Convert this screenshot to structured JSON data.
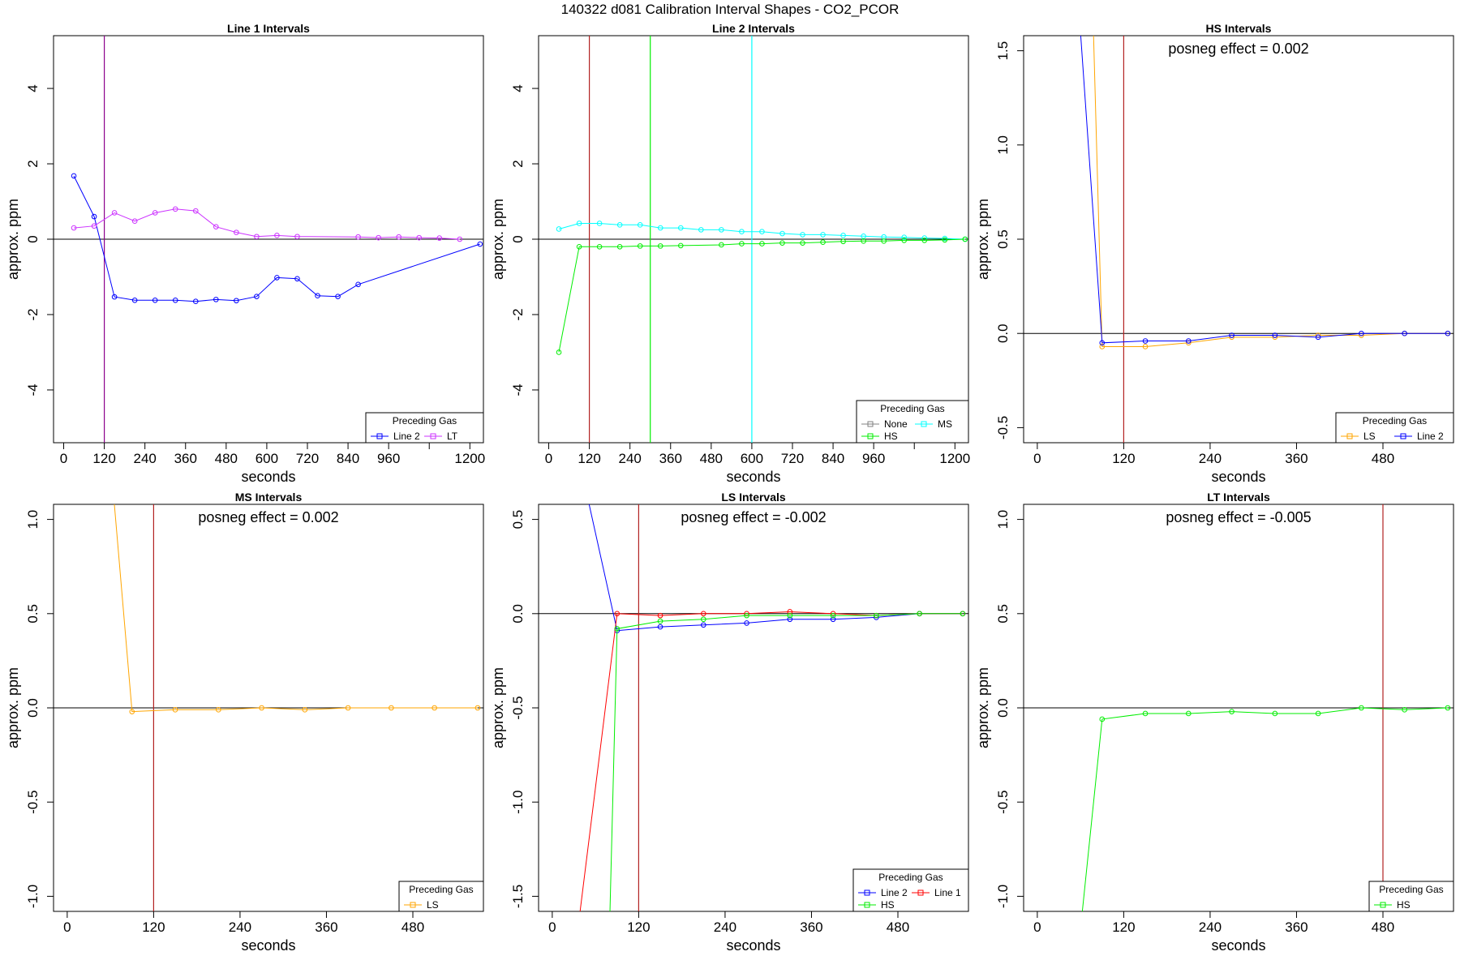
{
  "figure_title": "140322  d081   Calibration Interval Shapes - CO2_PCOR",
  "colors": {
    "blue": "#0000ff",
    "orchid": "#cc33ff",
    "cyan": "#00ffff",
    "green": "#00ee00",
    "orange": "#ffa500",
    "red": "#ff0000",
    "gray": "#808080",
    "brown": "#b22222"
  },
  "chart_data": [
    {
      "type": "line",
      "title": "Line 1 Intervals",
      "xlabel": "seconds",
      "ylabel": "approx. ppm",
      "xlim": [
        -30,
        1240
      ],
      "ylim": [
        -5.4,
        5.4
      ],
      "xticks": [
        0,
        120,
        240,
        360,
        480,
        600,
        720,
        840,
        960,
        1080,
        1200
      ],
      "xtick_labels": [
        "0",
        "120",
        "240",
        "360",
        "480",
        "600",
        "720",
        "840",
        "960",
        "",
        "1200"
      ],
      "yticks": [
        -4,
        -2,
        0,
        2,
        4
      ],
      "ytick_labels": [
        "-4",
        "-2",
        "0",
        "2",
        "4"
      ],
      "vlines": [
        {
          "x": 120,
          "color": "#8b008b"
        }
      ],
      "legend": {
        "title": "Preceding Gas",
        "position": "bottom-right",
        "entries": [
          "Line 2",
          "LT"
        ]
      },
      "series": [
        {
          "name": "Line 2",
          "color": "#0000ff",
          "x": [
            30,
            90,
            150,
            210,
            270,
            330,
            390,
            450,
            510,
            570,
            630,
            690,
            750,
            810,
            870,
            1230
          ],
          "y": [
            1.68,
            0.6,
            -1.53,
            -1.62,
            -1.62,
            -1.62,
            -1.65,
            -1.6,
            -1.63,
            -1.52,
            -1.02,
            -1.05,
            -1.5,
            -1.52,
            -1.2,
            -0.13
          ]
        },
        {
          "name": "LT",
          "color": "#cc33ff",
          "x": [
            30,
            90,
            150,
            210,
            270,
            330,
            390,
            450,
            510,
            570,
            630,
            690,
            870,
            930,
            990,
            1050,
            1110,
            1170
          ],
          "y": [
            0.3,
            0.35,
            0.7,
            0.48,
            0.7,
            0.8,
            0.75,
            0.33,
            0.18,
            0.07,
            0.1,
            0.07,
            0.06,
            0.04,
            0.06,
            0.04,
            0.03,
            0.0
          ]
        }
      ]
    },
    {
      "type": "line",
      "title": "Line 2 Intervals",
      "xlabel": "seconds",
      "ylabel": "approx. ppm",
      "xlim": [
        -30,
        1240
      ],
      "ylim": [
        -5.4,
        5.4
      ],
      "xticks": [
        0,
        120,
        240,
        360,
        480,
        600,
        720,
        840,
        960,
        1080,
        1200
      ],
      "xtick_labels": [
        "0",
        "120",
        "240",
        "360",
        "480",
        "600",
        "720",
        "840",
        "960",
        "",
        "1200"
      ],
      "yticks": [
        -4,
        -2,
        0,
        2,
        4
      ],
      "ytick_labels": [
        "-4",
        "-2",
        "0",
        "2",
        "4"
      ],
      "vlines": [
        {
          "x": 120,
          "color": "#b22222"
        },
        {
          "x": 300,
          "color": "#00ee00"
        },
        {
          "x": 600,
          "color": "#00ffff"
        }
      ],
      "legend": {
        "title": "Preceding Gas",
        "position": "bottom-right",
        "entries": [
          "None",
          "MS",
          "HS"
        ]
      },
      "series": [
        {
          "name": "None",
          "color": "#808080",
          "x": [],
          "y": []
        },
        {
          "name": "MS",
          "color": "#00ffff",
          "x": [
            30,
            90,
            150,
            210,
            270,
            330,
            390,
            450,
            510,
            570,
            630,
            690,
            750,
            810,
            870,
            930,
            990,
            1050,
            1110,
            1170,
            1230
          ],
          "y": [
            0.27,
            0.42,
            0.42,
            0.38,
            0.38,
            0.3,
            0.3,
            0.25,
            0.25,
            0.2,
            0.2,
            0.15,
            0.12,
            0.12,
            0.1,
            0.08,
            0.06,
            0.05,
            0.03,
            0.02,
            0.0
          ]
        },
        {
          "name": "HS",
          "color": "#00ee00",
          "x": [
            30,
            90,
            150,
            210,
            270,
            330,
            390,
            510,
            570,
            630,
            690,
            750,
            810,
            870,
            930,
            990,
            1050,
            1110,
            1170,
            1230
          ],
          "y": [
            -3.0,
            -0.2,
            -0.2,
            -0.2,
            -0.18,
            -0.18,
            -0.17,
            -0.15,
            -0.12,
            -0.12,
            -0.1,
            -0.1,
            -0.08,
            -0.06,
            -0.05,
            -0.05,
            -0.03,
            -0.03,
            -0.02,
            0.0
          ]
        }
      ]
    },
    {
      "type": "line",
      "title": "HS Intervals",
      "xlabel": "seconds",
      "ylabel": "approx. ppm",
      "xlim": [
        -19,
        578
      ],
      "ylim": [
        -0.58,
        1.58
      ],
      "xticks": [
        0,
        120,
        240,
        360,
        480
      ],
      "xtick_labels": [
        "0",
        "120",
        "240",
        "360",
        "480"
      ],
      "yticks": [
        -0.5,
        0.0,
        0.5,
        1.0,
        1.5
      ],
      "ytick_labels": [
        "-0.5",
        "0.0",
        "0.5",
        "1.0",
        "1.5"
      ],
      "vlines": [
        {
          "x": 120,
          "color": "#b22222"
        }
      ],
      "annotation": "posneg effect = 0.002",
      "legend": {
        "title": "Preceding Gas",
        "position": "bottom-right",
        "entries": [
          "LS",
          "Line 2"
        ]
      },
      "series": [
        {
          "name": "LS",
          "color": "#ffa500",
          "x": [
            78,
            90,
            150,
            210,
            270,
            330,
            390,
            450,
            510,
            570
          ],
          "y": [
            1.6,
            -0.07,
            -0.07,
            -0.05,
            -0.02,
            -0.02,
            -0.01,
            -0.01,
            0.0,
            0.0
          ]
        },
        {
          "name": "Line 2",
          "color": "#0000ff",
          "x": [
            60,
            90,
            150,
            210,
            270,
            330,
            390,
            450,
            510,
            570
          ],
          "y": [
            1.6,
            -0.05,
            -0.04,
            -0.04,
            -0.01,
            -0.01,
            -0.02,
            0.0,
            0.0,
            0.0
          ]
        }
      ]
    },
    {
      "type": "line",
      "title": "MS Intervals",
      "xlabel": "seconds",
      "ylabel": "approx. ppm",
      "xlim": [
        -19,
        578
      ],
      "ylim": [
        -1.08,
        1.08
      ],
      "xticks": [
        0,
        120,
        240,
        360,
        480
      ],
      "xtick_labels": [
        "0",
        "120",
        "240",
        "360",
        "480"
      ],
      "yticks": [
        -1.0,
        -0.5,
        0.0,
        0.5,
        1.0
      ],
      "ytick_labels": [
        "-1.0",
        "-0.5",
        "0.0",
        "0.5",
        "1.0"
      ],
      "vlines": [
        {
          "x": 120,
          "color": "#b22222"
        }
      ],
      "annotation": "posneg effect = 0.002",
      "legend": {
        "title": "Preceding Gas",
        "position": "bottom-right",
        "entries": [
          "LS"
        ]
      },
      "series": [
        {
          "name": "LS",
          "color": "#ffa500",
          "x": [
            65,
            90,
            150,
            210,
            270,
            330,
            390,
            450,
            510,
            570
          ],
          "y": [
            1.1,
            -0.02,
            -0.01,
            -0.01,
            0.0,
            -0.01,
            0.0,
            0.0,
            0.0,
            0.0
          ]
        }
      ]
    },
    {
      "type": "line",
      "title": "LS Intervals",
      "xlabel": "seconds",
      "ylabel": "approx. ppm",
      "xlim": [
        -19,
        578
      ],
      "ylim": [
        -1.58,
        0.58
      ],
      "xticks": [
        0,
        120,
        240,
        360,
        480
      ],
      "xtick_labels": [
        "0",
        "120",
        "240",
        "360",
        "480"
      ],
      "yticks": [
        -1.5,
        -1.0,
        -0.5,
        0.0,
        0.5
      ],
      "ytick_labels": [
        "-1.5",
        "-1.0",
        "-0.5",
        "0.0",
        "0.5"
      ],
      "vlines": [
        {
          "x": 120,
          "color": "#b22222"
        }
      ],
      "annotation": "posneg effect = -0.002",
      "legend": {
        "title": "Preceding Gas",
        "position": "bottom-right",
        "entries": [
          "Line 2",
          "Line 1",
          "HS"
        ]
      },
      "series": [
        {
          "name": "Line 2",
          "color": "#0000ff",
          "x": [
            50,
            90,
            150,
            210,
            270,
            330,
            390,
            450,
            510,
            570
          ],
          "y": [
            0.6,
            -0.09,
            -0.07,
            -0.06,
            -0.05,
            -0.03,
            -0.03,
            -0.02,
            0.0,
            0.0
          ]
        },
        {
          "name": "Line 1",
          "color": "#ff0000",
          "x": [
            38,
            90,
            150,
            210,
            270,
            330,
            390,
            450,
            510,
            570
          ],
          "y": [
            -1.6,
            0.0,
            -0.01,
            0.0,
            0.0,
            0.01,
            0.0,
            -0.01,
            0.0,
            0.0
          ]
        },
        {
          "name": "HS",
          "color": "#00ee00",
          "x": [
            80,
            90,
            150,
            210,
            270,
            330,
            390,
            450,
            510,
            570
          ],
          "y": [
            -1.6,
            -0.08,
            -0.04,
            -0.03,
            -0.01,
            -0.01,
            -0.01,
            -0.01,
            0.0,
            0.0
          ]
        }
      ]
    },
    {
      "type": "line",
      "title": "LT Intervals",
      "xlabel": "seconds",
      "ylabel": "approx. ppm",
      "xlim": [
        -19,
        578
      ],
      "ylim": [
        -1.08,
        1.08
      ],
      "xticks": [
        0,
        120,
        240,
        360,
        480
      ],
      "xtick_labels": [
        "0",
        "120",
        "240",
        "360",
        "480"
      ],
      "yticks": [
        -1.0,
        -0.5,
        0.0,
        0.5,
        1.0
      ],
      "ytick_labels": [
        "-1.0",
        "-0.5",
        "0.0",
        "0.5",
        "1.0"
      ],
      "vlines": [
        {
          "x": 480,
          "color": "#b22222"
        }
      ],
      "annotation": "posneg effect = -0.005",
      "legend": {
        "title": "Preceding Gas",
        "position": "bottom-right",
        "entries": [
          "HS"
        ]
      },
      "series": [
        {
          "name": "HS",
          "color": "#00ee00",
          "x": [
            62,
            90,
            150,
            210,
            270,
            330,
            390,
            450,
            510,
            570
          ],
          "y": [
            -1.1,
            -0.06,
            -0.03,
            -0.03,
            -0.02,
            -0.03,
            -0.03,
            0.0,
            -0.01,
            0.0
          ]
        }
      ]
    }
  ]
}
